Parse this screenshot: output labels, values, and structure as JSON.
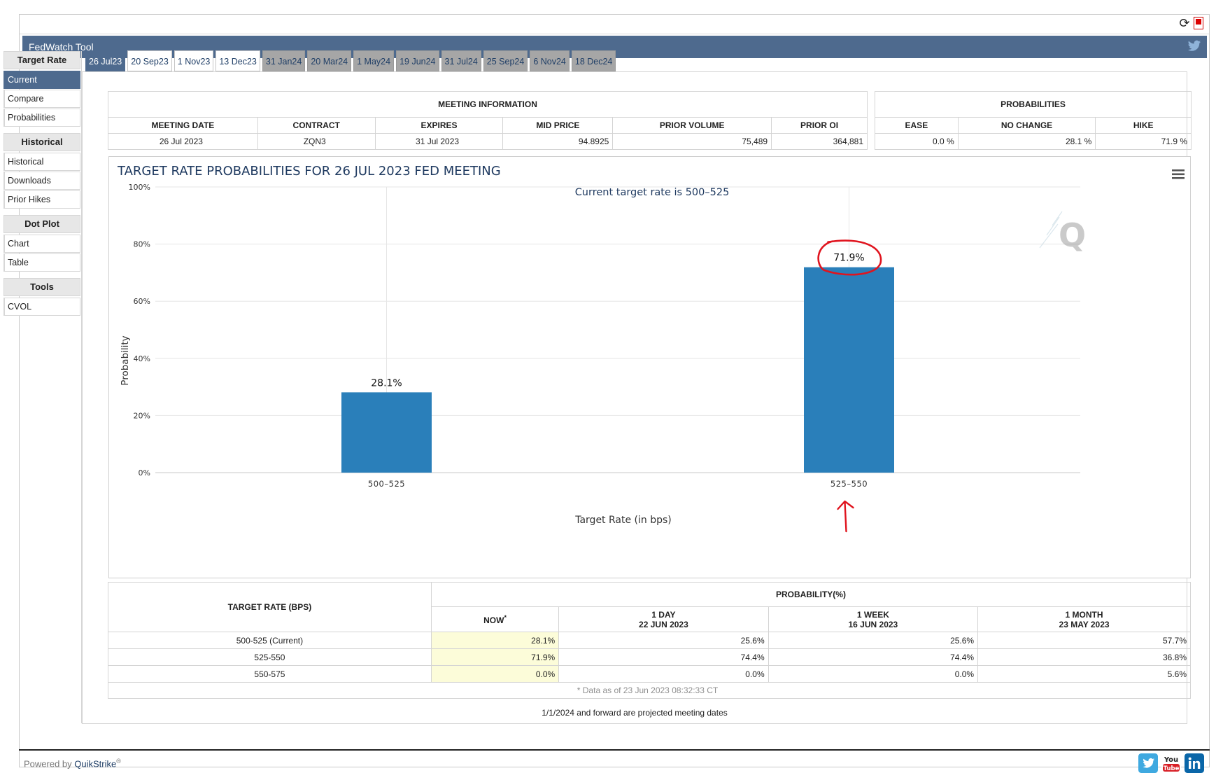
{
  "app": {
    "title": "FedWatch Tool"
  },
  "sidebar": {
    "sections": [
      {
        "heading": "Target Rate",
        "items": [
          "Current",
          "Compare",
          "Probabilities"
        ],
        "active": "Current"
      },
      {
        "heading": "Historical",
        "items": [
          "Historical",
          "Downloads",
          "Prior Hikes"
        ]
      },
      {
        "heading": "Dot Plot",
        "items": [
          "Chart",
          "Table"
        ]
      },
      {
        "heading": "Tools",
        "items": [
          "CVOL"
        ]
      }
    ]
  },
  "tabs": [
    {
      "label": "26 Jul23",
      "state": "active"
    },
    {
      "label": "20 Sep23",
      "state": "normal"
    },
    {
      "label": "1 Nov23",
      "state": "normal"
    },
    {
      "label": "13 Dec23",
      "state": "normal"
    },
    {
      "label": "31 Jan24",
      "state": "projected"
    },
    {
      "label": "20 Mar24",
      "state": "projected"
    },
    {
      "label": "1 May24",
      "state": "projected"
    },
    {
      "label": "19 Jun24",
      "state": "projected"
    },
    {
      "label": "31 Jul24",
      "state": "projected"
    },
    {
      "label": "25 Sep24",
      "state": "projected"
    },
    {
      "label": "6 Nov24",
      "state": "projected"
    },
    {
      "label": "18 Dec24",
      "state": "projected"
    }
  ],
  "meeting_info": {
    "title": "MEETING INFORMATION",
    "headers": [
      "MEETING DATE",
      "CONTRACT",
      "EXPIRES",
      "MID PRICE",
      "PRIOR VOLUME",
      "PRIOR OI"
    ],
    "values": [
      "26 Jul 2023",
      "ZQN3",
      "31 Jul 2023",
      "94.8925",
      "75,489",
      "364,881"
    ]
  },
  "probabilities": {
    "title": "PROBABILITIES",
    "headers": [
      "EASE",
      "NO CHANGE",
      "HIKE"
    ],
    "values": [
      "0.0 %",
      "28.1 %",
      "71.9 %"
    ]
  },
  "chart_data": {
    "type": "bar",
    "title": "TARGET RATE PROBABILITIES FOR 26 JUL 2023 FED MEETING",
    "subtitle": "Current target rate is 500–525",
    "xlabel": "Target Rate (in bps)",
    "ylabel": "Probability",
    "categories": [
      "500–525",
      "525–550"
    ],
    "values": [
      28.1,
      71.9
    ],
    "data_labels": [
      "28.1%",
      "71.9%"
    ],
    "ylim": [
      0,
      100
    ],
    "yticks": [
      "0%",
      "20%",
      "40%",
      "60%",
      "80%",
      "100%"
    ],
    "bar_color": "#2a7fba",
    "grid": true,
    "annotation": {
      "target_category": "525–550",
      "color": "#e0141e",
      "shape": "circle-and-arrow"
    }
  },
  "history_table": {
    "rate_header": "TARGET RATE (BPS)",
    "prob_header": "PROBABILITY(%)",
    "now_header": "NOW",
    "now_mark": "*",
    "columns": [
      {
        "label": "1 DAY",
        "date": "22 JUN 2023"
      },
      {
        "label": "1 WEEK",
        "date": "16 JUN 2023"
      },
      {
        "label": "1 MONTH",
        "date": "23 MAY 2023"
      }
    ],
    "rows": [
      {
        "rate": "500-525 (Current)",
        "now": "28.1%",
        "values": [
          "25.6%",
          "25.6%",
          "57.7%"
        ]
      },
      {
        "rate": "525-550",
        "now": "71.9%",
        "values": [
          "74.4%",
          "74.4%",
          "36.8%"
        ]
      },
      {
        "rate": "550-575",
        "now": "0.0%",
        "values": [
          "0.0%",
          "0.0%",
          "5.6%"
        ]
      }
    ],
    "footnote": "* Data as of 23 Jun 2023 08:32:33 CT"
  },
  "projected_note": "1/1/2024 and forward are projected meeting dates",
  "footer": {
    "powered_prefix": "Powered by ",
    "brand": "QuikStrike",
    "reg": "®"
  }
}
